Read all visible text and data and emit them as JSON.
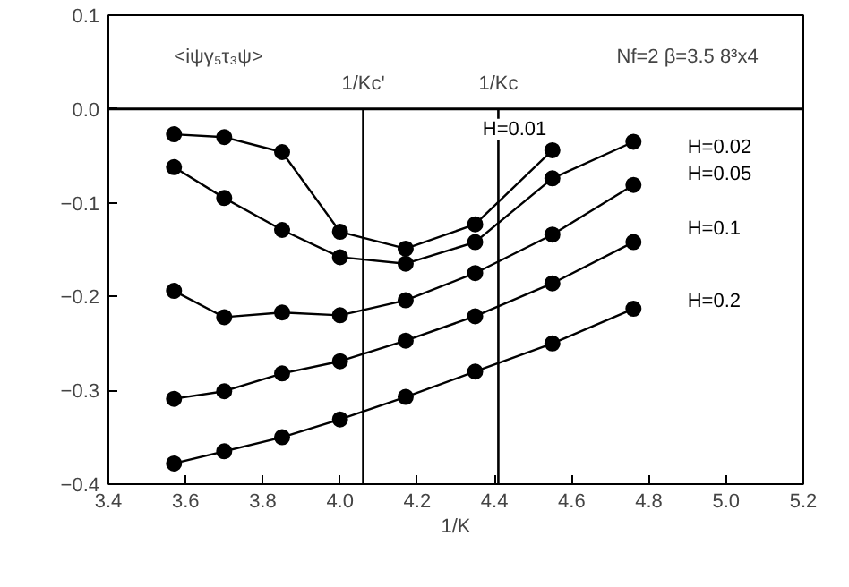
{
  "chart_data": {
    "type": "line",
    "xlabel": "1/K",
    "marker": "circle",
    "legend": false,
    "grid": false,
    "annotations": [
      "<iψγ₅τ₃ψ>",
      "Nf=2   β=3.5   8³x4"
    ],
    "xlim": [
      3.4,
      5.2
    ],
    "ylim": [
      -0.4,
      0.1
    ],
    "xticks": [
      3.4,
      3.6,
      3.8,
      {
        "value": 4.0,
        "label": "4.0"
      },
      4.2,
      4.4,
      4.6,
      4.8,
      {
        "value": 5.0,
        "label": "5.0"
      },
      5.2
    ],
    "yticks": [
      -0.4,
      -0.3,
      -0.2,
      -0.1,
      {
        "value": 0,
        "label": "0.0"
      },
      0.1
    ],
    "x": [
      3.57,
      3.7,
      3.85,
      4.0,
      4.17,
      4.35,
      4.55,
      4.76
    ],
    "ref_lines": [
      {
        "axis": "y",
        "value": 0,
        "label": null
      },
      {
        "axis": "x",
        "value": 4.06,
        "label": "1/Kc'"
      },
      {
        "axis": "x",
        "value": 4.41,
        "label": "1/Kc"
      }
    ],
    "series": [
      {
        "name": "H=0.01",
        "color": "#000000",
        "values": [
          -0.027,
          -0.03,
          -0.046,
          -0.131,
          -0.149,
          -0.123,
          -0.044,
          null
        ]
      },
      {
        "name": "H=0.02",
        "color": "#000000",
        "values": [
          -0.062,
          -0.095,
          -0.129,
          -0.158,
          -0.165,
          -0.142,
          -0.074,
          -0.035
        ]
      },
      {
        "name": "H=0.05",
        "color": "#000000",
        "values": [
          -0.194,
          -0.222,
          -0.217,
          -0.22,
          -0.204,
          -0.175,
          -0.134,
          -0.081
        ]
      },
      {
        "name": "H=0.1",
        "color": "#000000",
        "values": [
          -0.309,
          -0.301,
          -0.282,
          -0.269,
          -0.247,
          -0.221,
          -0.186,
          -0.142
        ]
      },
      {
        "name": "H=0.2",
        "color": "#000000",
        "values": [
          -0.378,
          -0.365,
          -0.35,
          -0.331,
          -0.307,
          -0.28,
          -0.25,
          -0.213
        ]
      }
    ]
  }
}
